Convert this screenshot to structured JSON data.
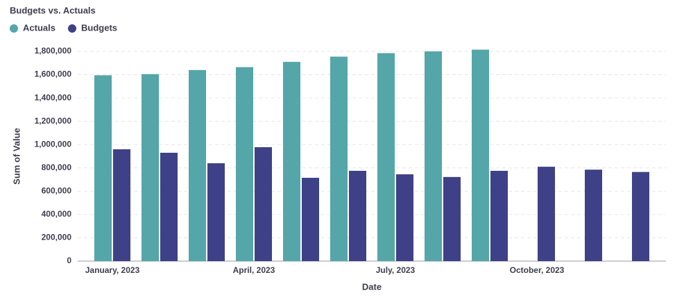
{
  "chart_data": {
    "type": "bar",
    "title": "Budgets vs. Actuals",
    "categories": [
      "January, 2023",
      null,
      null,
      "April, 2023",
      null,
      null,
      "July, 2023",
      null,
      null,
      "October, 2023",
      null,
      null
    ],
    "series": [
      {
        "name": "Actuals",
        "color": "#54a6a9",
        "values": [
          1595000,
          1605000,
          1640000,
          1665000,
          1710000,
          1755000,
          1785000,
          1800000,
          1815000,
          null,
          null,
          null
        ]
      },
      {
        "name": "Budgets",
        "color": "#3e4187",
        "values": [
          960000,
          930000,
          840000,
          978000,
          715000,
          775000,
          745000,
          722000,
          775000,
          810000,
          785000,
          765000
        ]
      }
    ],
    "ylim": [
      0,
      1800000
    ],
    "yticks": [
      0,
      {
        "value": 200000,
        "label": "200,000"
      },
      {
        "value": 400000,
        "label": "400,000"
      },
      {
        "value": 600000,
        "label": "600,000"
      },
      {
        "value": 800000,
        "label": "800,000"
      },
      {
        "value": 1000000,
        "label": "1,000,000"
      },
      {
        "value": 1200000,
        "label": "1,200,000"
      },
      {
        "value": 1400000,
        "label": "1,400,000"
      },
      {
        "value": 1600000,
        "label": "1,600,000"
      },
      {
        "value": 1800000,
        "label": "1,800,000"
      }
    ],
    "xlabel": "Date",
    "ylabel": "Sum of Value",
    "grid": true,
    "legend": "top-left"
  }
}
